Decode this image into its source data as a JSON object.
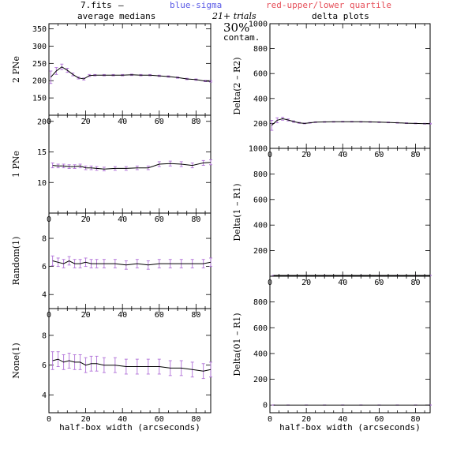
{
  "header": {
    "file": "7.fits",
    "dash": "–",
    "blue_label": "blue-sigma",
    "red_label": "red-upper/lower quartile",
    "left_title": "average medians",
    "right_title": "delta plots",
    "trials": "21+ trials",
    "contam_pct": "30%",
    "contam": "contam."
  },
  "colors": {
    "line": "#000000",
    "sigma": "#5a5ae6",
    "quartile": "#e6505a",
    "errorbar": "#b070d8"
  },
  "x_axis_label": "half-box width (arcseconds)",
  "chart_data": [
    {
      "type": "line",
      "panel": "left-1",
      "ylabel": "2 PNe",
      "xlim": [
        0,
        88
      ],
      "ylim": [
        100,
        365
      ],
      "x_ticks": [
        "0",
        "20",
        "40",
        "60",
        "80"
      ],
      "y_ticks": [
        {
          "v": 150,
          "t": "150"
        },
        {
          "v": 200,
          "t": "200"
        },
        {
          "v": 250,
          "t": "250"
        },
        {
          "v": 300,
          "t": "300"
        },
        {
          "v": 350,
          "t": "350"
        }
      ],
      "x": [
        1,
        4,
        7,
        10,
        13,
        16,
        19,
        22,
        25,
        30,
        35,
        40,
        45,
        50,
        55,
        60,
        65,
        70,
        75,
        80,
        85,
        88
      ],
      "y": [
        210,
        228,
        240,
        230,
        218,
        208,
        205,
        215,
        216,
        216,
        216,
        216,
        217,
        216,
        216,
        214,
        212,
        209,
        205,
        203,
        199,
        198
      ],
      "err": [
        18,
        10,
        8,
        6,
        4,
        3,
        3,
        3,
        2,
        2,
        2,
        2,
        2,
        2,
        2,
        2,
        2,
        2,
        2,
        2,
        2,
        2
      ]
    },
    {
      "type": "line",
      "panel": "left-2",
      "ylabel": "1 PNe",
      "xlim": [
        0,
        88
      ],
      "ylim": [
        5,
        21
      ],
      "x_ticks": [
        "0",
        "20",
        "40",
        "60",
        "80"
      ],
      "y_ticks": [
        {
          "v": 10,
          "t": "10"
        },
        {
          "v": 15,
          "t": "15"
        },
        {
          "v": 20,
          "t": "20"
        }
      ],
      "x": [
        2,
        5,
        8,
        11,
        14,
        17,
        20,
        23,
        26,
        30,
        36,
        42,
        48,
        54,
        60,
        66,
        72,
        78,
        84,
        88
      ],
      "y": [
        12.8,
        12.7,
        12.7,
        12.6,
        12.6,
        12.7,
        12.4,
        12.4,
        12.3,
        12.2,
        12.3,
        12.3,
        12.4,
        12.4,
        13.0,
        13.1,
        13.0,
        12.8,
        13.2,
        13.3
      ],
      "err": [
        0.4,
        0.3,
        0.3,
        0.3,
        0.3,
        0.3,
        0.3,
        0.3,
        0.3,
        0.3,
        0.3,
        0.3,
        0.3,
        0.3,
        0.4,
        0.4,
        0.4,
        0.4,
        0.4,
        0.4
      ]
    },
    {
      "type": "line",
      "panel": "left-3",
      "ylabel": "Random(1)",
      "xlim": [
        0,
        88
      ],
      "ylim": [
        3,
        9.8
      ],
      "x_ticks": [
        "0",
        "20",
        "40",
        "60",
        "80"
      ],
      "y_ticks": [
        {
          "v": 4,
          "t": "4"
        },
        {
          "v": 6,
          "t": "6"
        },
        {
          "v": 8,
          "t": "8"
        }
      ],
      "x": [
        2,
        5,
        8,
        11,
        14,
        17,
        20,
        23,
        26,
        30,
        36,
        42,
        48,
        54,
        60,
        66,
        72,
        78,
        84,
        88
      ],
      "y": [
        6.4,
        6.3,
        6.2,
        6.4,
        6.2,
        6.2,
        6.3,
        6.2,
        6.2,
        6.2,
        6.2,
        6.1,
        6.2,
        6.1,
        6.2,
        6.2,
        6.2,
        6.2,
        6.2,
        6.3
      ],
      "err": [
        0.35,
        0.3,
        0.3,
        0.3,
        0.3,
        0.3,
        0.3,
        0.3,
        0.3,
        0.3,
        0.3,
        0.3,
        0.3,
        0.3,
        0.3,
        0.3,
        0.3,
        0.3,
        0.3,
        0.3
      ]
    },
    {
      "type": "line",
      "panel": "left-4",
      "ylabel": "None(1)",
      "xlim": [
        0,
        88
      ],
      "ylim": [
        2.8,
        9.8
      ],
      "x_ticks": [
        "0",
        "20",
        "40",
        "60",
        "80"
      ],
      "y_ticks": [
        {
          "v": 4,
          "t": "4"
        },
        {
          "v": 6,
          "t": "6"
        },
        {
          "v": 8,
          "t": "8"
        }
      ],
      "x": [
        2,
        5,
        8,
        11,
        14,
        17,
        20,
        23,
        26,
        30,
        36,
        42,
        48,
        54,
        60,
        66,
        72,
        78,
        84,
        88
      ],
      "y": [
        6.3,
        6.4,
        6.2,
        6.3,
        6.2,
        6.2,
        6.0,
        6.1,
        6.1,
        6.0,
        6.0,
        5.9,
        5.9,
        5.9,
        5.9,
        5.8,
        5.8,
        5.7,
        5.6,
        5.7
      ],
      "err": [
        0.6,
        0.5,
        0.5,
        0.5,
        0.5,
        0.5,
        0.5,
        0.5,
        0.5,
        0.5,
        0.5,
        0.5,
        0.5,
        0.5,
        0.5,
        0.5,
        0.5,
        0.5,
        0.5,
        0.5
      ]
    },
    {
      "type": "line",
      "panel": "right-1",
      "ylabel": "Delta(2 – R2)",
      "xlim": [
        0,
        88
      ],
      "ylim": [
        0,
        1000
      ],
      "x_ticks": [
        "0",
        "20",
        "40",
        "60",
        "80"
      ],
      "y_ticks": [
        {
          "v": 200,
          "t": "200"
        },
        {
          "v": 400,
          "t": "400"
        },
        {
          "v": 600,
          "t": "600"
        },
        {
          "v": 800,
          "t": "800"
        },
        {
          "v": 1000,
          "t": "1000"
        }
      ],
      "x": [
        1,
        4,
        7,
        10,
        13,
        16,
        19,
        22,
        25,
        30,
        35,
        40,
        45,
        50,
        55,
        60,
        65,
        70,
        75,
        80,
        85,
        88
      ],
      "y": [
        185,
        225,
        238,
        228,
        215,
        205,
        200,
        205,
        210,
        212,
        213,
        214,
        214,
        213,
        212,
        210,
        208,
        205,
        202,
        200,
        198,
        198
      ],
      "err": [
        40,
        20,
        12,
        8,
        6,
        4,
        3,
        3,
        3,
        3,
        3,
        3,
        3,
        3,
        3,
        3,
        3,
        3,
        3,
        3,
        3,
        3
      ]
    },
    {
      "type": "line",
      "panel": "right-2",
      "ylabel": "Delta(1 – R1)",
      "xlim": [
        0,
        88
      ],
      "ylim": [
        0,
        1000
      ],
      "x_ticks": [
        "0",
        "20",
        "40",
        "60",
        "80"
      ],
      "y_ticks": [
        {
          "v": 200,
          "t": "200"
        },
        {
          "v": 400,
          "t": "400"
        },
        {
          "v": 600,
          "t": "600"
        },
        {
          "v": 800,
          "t": "800"
        },
        {
          "v": 1000,
          "t": "1000"
        }
      ],
      "x": [
        2,
        10,
        20,
        30,
        40,
        50,
        60,
        70,
        80,
        88
      ],
      "y": [
        6,
        6,
        6,
        6,
        6,
        6,
        6,
        6,
        6,
        6
      ],
      "err": [
        1,
        1,
        1,
        1,
        1,
        1,
        1,
        1,
        1,
        1
      ]
    },
    {
      "type": "line",
      "panel": "right-3",
      "ylabel": "Delta(01 – R1)",
      "xlim": [
        0,
        88
      ],
      "ylim": [
        -60,
        1000
      ],
      "x_ticks": [
        "0",
        "20",
        "40",
        "60",
        "80"
      ],
      "y_ticks": [
        {
          "v": 0,
          "t": "0"
        },
        {
          "v": 200,
          "t": "200"
        },
        {
          "v": 400,
          "t": "400"
        },
        {
          "v": 600,
          "t": "600"
        },
        {
          "v": 800,
          "t": "800"
        }
      ],
      "x": [
        2,
        10,
        20,
        30,
        40,
        50,
        60,
        70,
        80,
        88
      ],
      "y": [
        0,
        0,
        0,
        0,
        0,
        0,
        0,
        0,
        0,
        0
      ],
      "err": [
        1,
        1,
        1,
        1,
        1,
        1,
        1,
        1,
        1,
        1
      ]
    }
  ]
}
